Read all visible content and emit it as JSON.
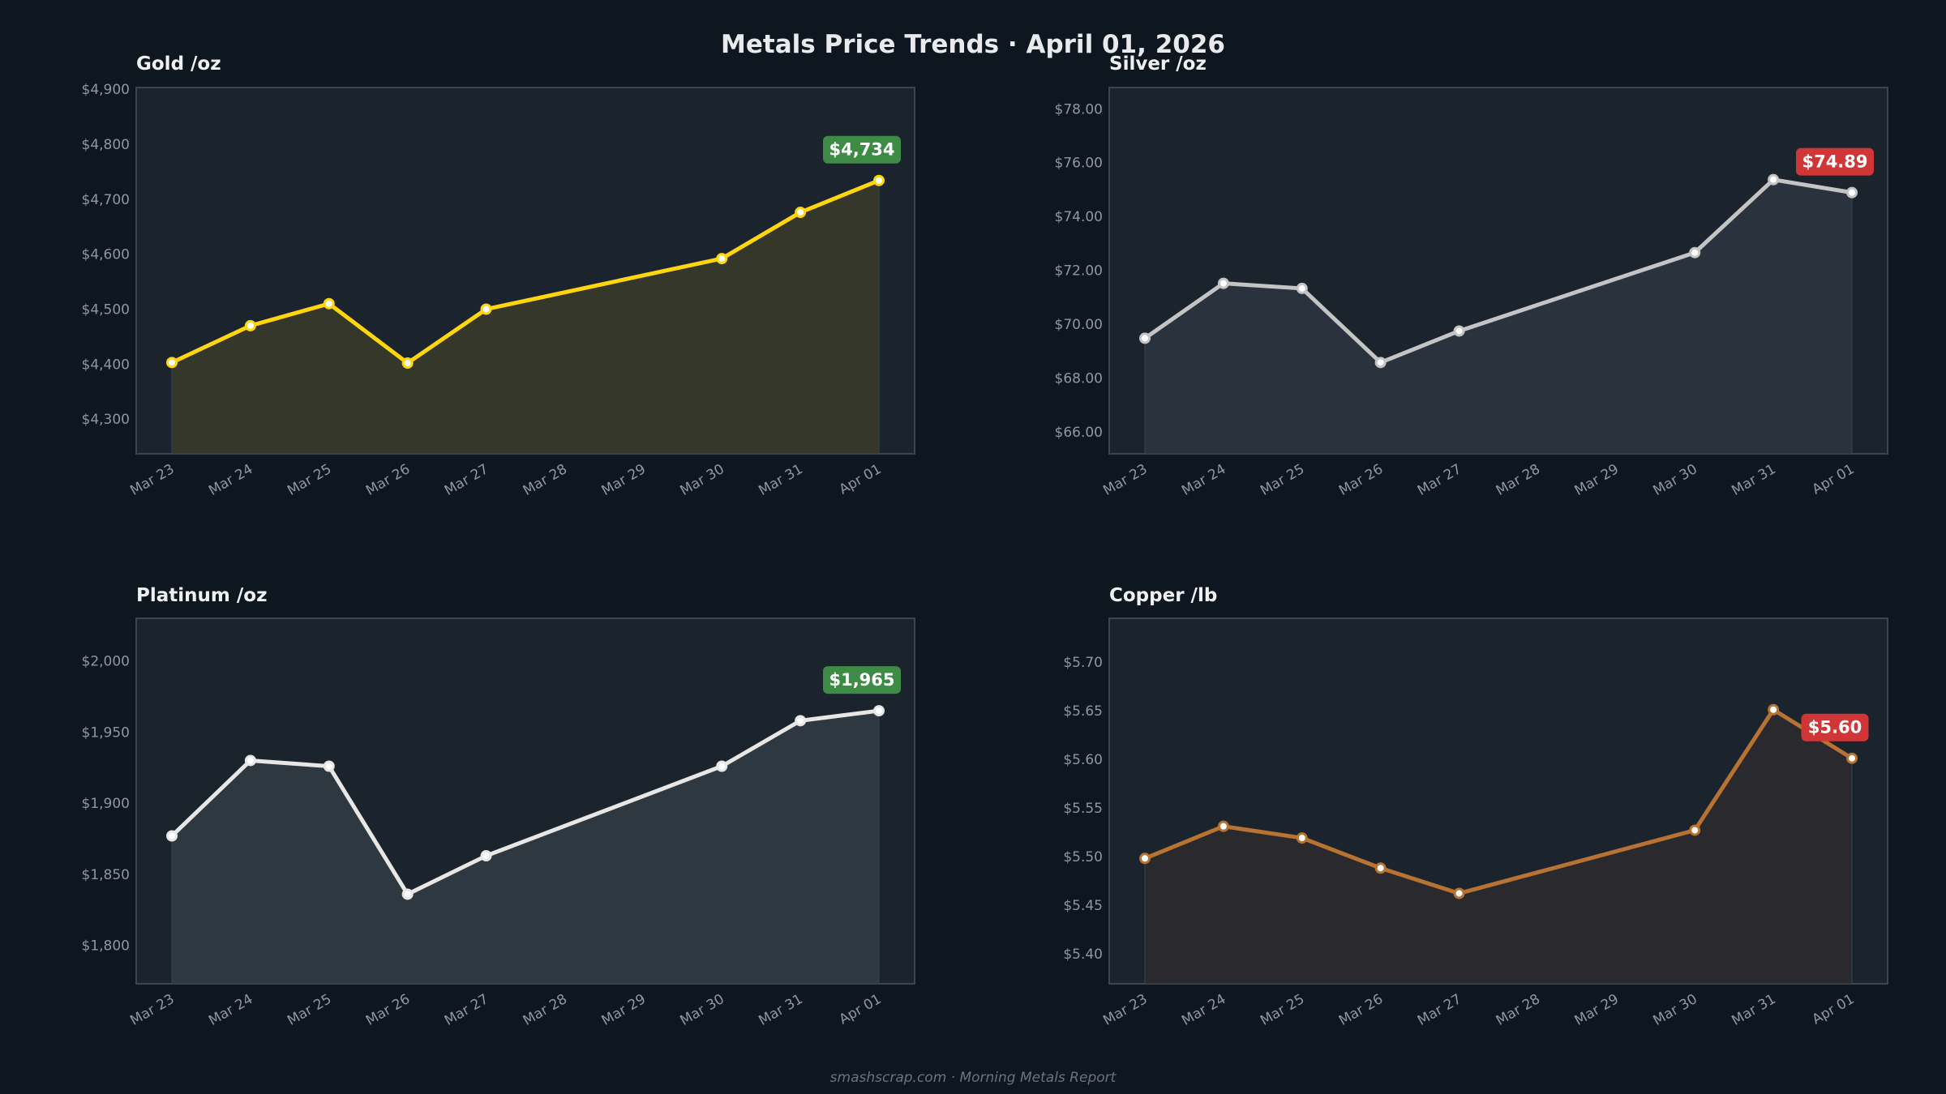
{
  "title": "Metals Price Trends  ·  April 01, 2026",
  "footer": "smashscrap.com  ·  Morning Metals Report",
  "colors": {
    "background": "#0e1720",
    "plot_background": "#1b242d",
    "border": "#3a4550",
    "up": "#3d8b44",
    "down": "#d13636"
  },
  "chart_data": [
    {
      "type": "area",
      "title": "Gold  /oz",
      "x_dates": [
        "2026-03-23",
        "2026-03-24",
        "2026-03-25",
        "2026-03-26",
        "2026-03-27",
        "2026-03-30",
        "2026-03-31",
        "2026-04-01"
      ],
      "x_tick_labels": [
        "Mar 23",
        "Mar 24",
        "Mar 25",
        "Mar 26",
        "Mar 27",
        "Mar 28",
        "Mar 29",
        "Mar 30",
        "Mar 31",
        "Apr 01"
      ],
      "values": [
        4403,
        4470,
        4510,
        4402,
        4500,
        4592,
        4676,
        4734
      ],
      "y_ticks": [
        4300,
        4400,
        4500,
        4600,
        4700,
        4800,
        4900
      ],
      "y_tick_labels": [
        "$4,300",
        "$4,400",
        "$4,500",
        "$4,600",
        "$4,700",
        "$4,800",
        "$4,900"
      ],
      "ylim": [
        4237,
        4903
      ],
      "line_color": "#ffd60a",
      "fill_color": "#34372a",
      "last_label": "$4,734",
      "last_direction": "up"
    },
    {
      "type": "area",
      "title": "Silver  /oz",
      "x_dates": [
        "2026-03-23",
        "2026-03-24",
        "2026-03-25",
        "2026-03-26",
        "2026-03-27",
        "2026-03-30",
        "2026-03-31",
        "2026-04-01"
      ],
      "x_tick_labels": [
        "Mar 23",
        "Mar 24",
        "Mar 25",
        "Mar 26",
        "Mar 27",
        "Mar 28",
        "Mar 29",
        "Mar 30",
        "Mar 31",
        "Apr 01"
      ],
      "values": [
        69.48,
        71.52,
        71.33,
        68.58,
        69.75,
        72.66,
        75.37,
        74.89
      ],
      "y_ticks": [
        66,
        68,
        70,
        72,
        74,
        76,
        78
      ],
      "y_tick_labels": [
        "$66.00",
        "$68.00",
        "$70.00",
        "$72.00",
        "$74.00",
        "$76.00",
        "$78.00"
      ],
      "ylim": [
        65.19,
        78.79
      ],
      "line_color": "#c4c4c4",
      "fill_color": "#2a333d",
      "last_label": "$74.89",
      "last_direction": "down"
    },
    {
      "type": "area",
      "title": "Platinum  /oz",
      "x_dates": [
        "2026-03-23",
        "2026-03-24",
        "2026-03-25",
        "2026-03-26",
        "2026-03-27",
        "2026-03-30",
        "2026-03-31",
        "2026-04-01"
      ],
      "x_tick_labels": [
        "Mar 23",
        "Mar 24",
        "Mar 25",
        "Mar 26",
        "Mar 27",
        "Mar 28",
        "Mar 29",
        "Mar 30",
        "Mar 31",
        "Apr 01"
      ],
      "values": [
        1877,
        1930,
        1926,
        1836,
        1863,
        1926,
        1958,
        1965
      ],
      "y_ticks": [
        1800,
        1850,
        1900,
        1950,
        2000
      ],
      "y_tick_labels": [
        "$1,800",
        "$1,850",
        "$1,900",
        "$1,950",
        "$2,000"
      ],
      "ylim": [
        1773,
        2030
      ],
      "line_color": "#e8e7e5",
      "fill_color": "#2e3841",
      "last_label": "$1,965",
      "last_direction": "up"
    },
    {
      "type": "area",
      "title": "Copper  /lb",
      "x_dates": [
        "2026-03-23",
        "2026-03-24",
        "2026-03-25",
        "2026-03-26",
        "2026-03-27",
        "2026-03-30",
        "2026-03-31",
        "2026-04-01"
      ],
      "x_tick_labels": [
        "Mar 23",
        "Mar 24",
        "Mar 25",
        "Mar 26",
        "Mar 27",
        "Mar 28",
        "Mar 29",
        "Mar 30",
        "Mar 31",
        "Apr 01"
      ],
      "values": [
        5.498,
        5.531,
        5.519,
        5.488,
        5.462,
        5.527,
        5.651,
        5.601
      ],
      "y_ticks": [
        5.4,
        5.45,
        5.5,
        5.55,
        5.6,
        5.65,
        5.7
      ],
      "y_tick_labels": [
        "$5.40",
        "$5.45",
        "$5.50",
        "$5.55",
        "$5.60",
        "$5.65",
        "$5.70"
      ],
      "ylim": [
        5.369,
        5.745
      ],
      "line_color": "#b87333",
      "fill_color": "#2a2a2e",
      "last_label": "$5.60",
      "last_direction": "down"
    }
  ]
}
